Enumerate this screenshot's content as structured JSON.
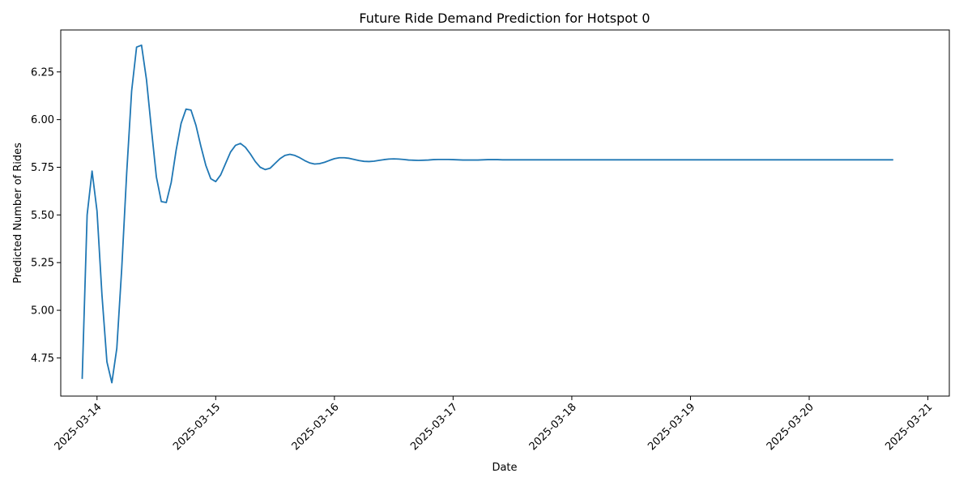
{
  "chart_data": {
    "type": "line",
    "title": "Future Ride Demand Prediction for Hotspot 0",
    "xlabel": "Date",
    "ylabel": "Predicted Number of Rides",
    "grid": false,
    "legend": "none",
    "x_start": "2025-03-13 21:00",
    "x_step_hours": 1,
    "xlim": [
      "2025-03-13 16:40",
      "2025-03-21 04:20"
    ],
    "ylim": [
      4.55,
      6.47
    ],
    "x_ticks": [
      "2025-03-14",
      "2025-03-15",
      "2025-03-16",
      "2025-03-17",
      "2025-03-18",
      "2025-03-19",
      "2025-03-20",
      "2025-03-21"
    ],
    "y_ticks": [
      "4.75",
      "5.00",
      "5.25",
      "5.50",
      "5.75",
      "6.00",
      "6.25"
    ],
    "colors": {
      "series": "#1f77b4",
      "axis": "#000000"
    },
    "series": [
      {
        "name": "",
        "values": [
          4.64,
          5.5,
          5.73,
          5.52,
          5.08,
          4.73,
          4.62,
          4.8,
          5.22,
          5.72,
          6.15,
          6.38,
          6.39,
          6.21,
          5.95,
          5.7,
          5.57,
          5.565,
          5.67,
          5.84,
          5.98,
          6.055,
          6.05,
          5.97,
          5.86,
          5.76,
          5.69,
          5.675,
          5.71,
          5.77,
          5.83,
          5.865,
          5.875,
          5.855,
          5.82,
          5.78,
          5.75,
          5.738,
          5.745,
          5.77,
          5.795,
          5.812,
          5.818,
          5.812,
          5.8,
          5.785,
          5.773,
          5.767,
          5.769,
          5.776,
          5.786,
          5.795,
          5.8,
          5.8,
          5.797,
          5.791,
          5.785,
          5.781,
          5.78,
          5.782,
          5.786,
          5.79,
          5.793,
          5.794,
          5.793,
          5.791,
          5.788,
          5.787,
          5.786,
          5.787,
          5.788,
          5.79,
          5.791,
          5.791,
          5.791,
          5.79,
          5.789,
          5.788,
          5.788,
          5.788,
          5.788,
          5.789,
          5.79,
          5.79,
          5.79,
          5.789,
          5.789,
          5.789,
          5.789,
          5.789,
          5.789,
          5.789,
          5.789,
          5.789,
          5.789,
          5.789,
          5.789,
          5.789,
          5.789,
          5.789,
          5.789,
          5.789,
          5.789,
          5.789,
          5.789,
          5.789,
          5.789,
          5.789,
          5.789,
          5.789,
          5.789,
          5.789,
          5.789,
          5.789,
          5.789,
          5.789,
          5.789,
          5.789,
          5.789,
          5.789,
          5.789,
          5.789,
          5.789,
          5.789,
          5.789,
          5.789,
          5.789,
          5.789,
          5.789,
          5.789,
          5.789,
          5.789,
          5.789,
          5.789,
          5.789,
          5.789,
          5.789,
          5.789,
          5.789,
          5.789,
          5.789,
          5.789,
          5.789,
          5.789,
          5.789,
          5.789,
          5.789,
          5.789,
          5.789,
          5.789,
          5.789,
          5.789,
          5.789,
          5.789,
          5.789,
          5.789,
          5.789,
          5.789,
          5.789,
          5.789,
          5.789,
          5.789,
          5.789,
          5.789,
          5.789
        ]
      }
    ]
  }
}
